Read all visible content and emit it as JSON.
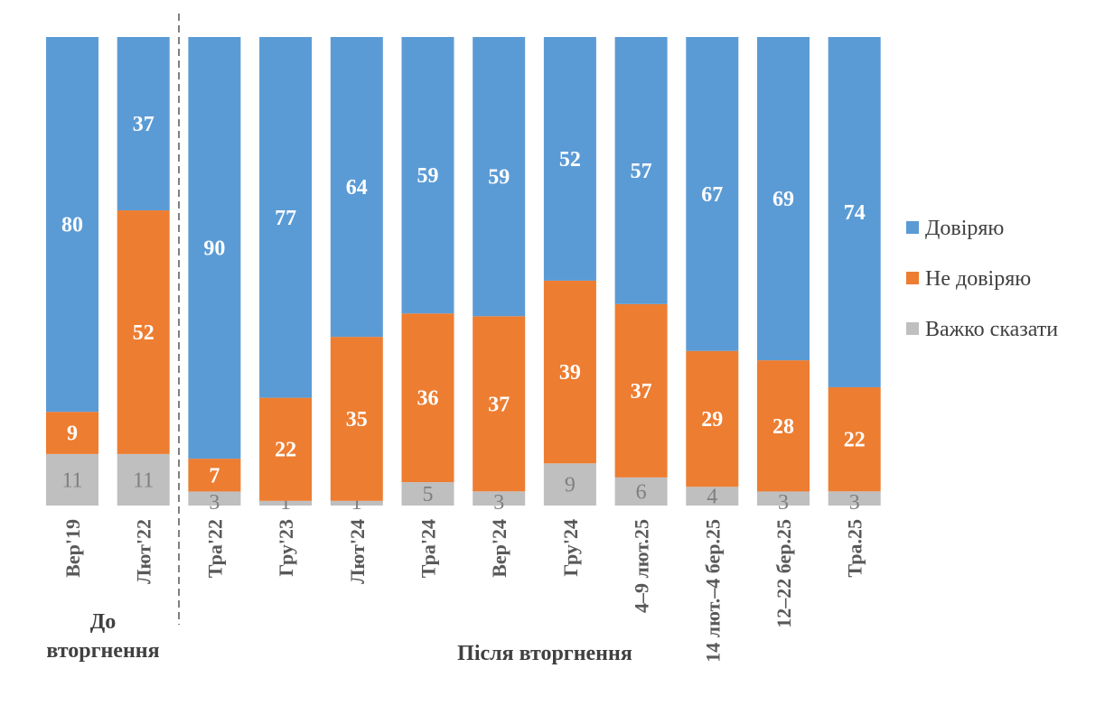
{
  "chart_data": {
    "type": "bar",
    "stacked": true,
    "title": "",
    "xlabel": "",
    "ylabel": "",
    "ylim": [
      0,
      100
    ],
    "grid": false,
    "legend_placement": "right",
    "categories": [
      "Вер'19",
      "Лют'22",
      "Тра'22",
      "Гру'23",
      "Лют'24",
      "Тра'24",
      "Вер'24",
      "Гру'24",
      "4–9 лют.25",
      "14 лют.–4 бер.25",
      "12–22 бер.25",
      "Тра.25"
    ],
    "series": [
      {
        "name": "Довіряю",
        "color": "#5b9bd5",
        "values": [
          80,
          37,
          90,
          77,
          64,
          59,
          59,
          52,
          57,
          67,
          69,
          74
        ]
      },
      {
        "name": "Не довіряю",
        "color": "#ed7d31",
        "values": [
          9,
          52,
          7,
          22,
          35,
          36,
          37,
          39,
          37,
          29,
          28,
          22
        ]
      },
      {
        "name": "Важко сказати",
        "color": "#bfbfbf",
        "values": [
          11,
          11,
          3,
          1,
          1,
          5,
          3,
          9,
          6,
          4,
          3,
          3
        ]
      }
    ],
    "groups": [
      {
        "label_lines": [
          "До",
          "вторгнення"
        ],
        "categories": [
          0,
          1
        ]
      },
      {
        "label_lines": [
          "Після вторгнення"
        ],
        "categories": [
          2,
          3,
          4,
          5,
          6,
          7,
          8,
          9,
          10,
          11
        ]
      }
    ]
  }
}
